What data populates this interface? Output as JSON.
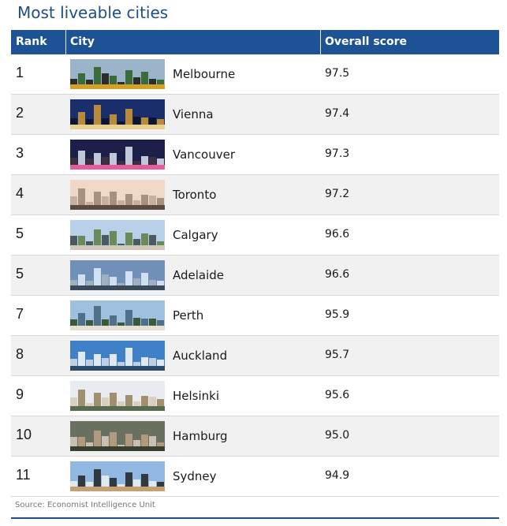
{
  "title": "Most liveable cities",
  "columns": {
    "rank": "Rank",
    "city": "City",
    "score": "Overall score"
  },
  "source": "Source: Economist Intelligence Unit",
  "chart_data": {
    "type": "table",
    "title": "Most liveable cities",
    "columns": [
      "Rank",
      "City",
      "Overall score"
    ],
    "rows": [
      {
        "rank": "1",
        "city": "Melbourne",
        "score": "97.5",
        "photo": "melbourne-tram-photo"
      },
      {
        "rank": "2",
        "city": "Vienna",
        "score": "97.4",
        "photo": "vienna-statue-photo"
      },
      {
        "rank": "3",
        "city": "Vancouver",
        "score": "97.3",
        "photo": "vancouver-night-skyline-photo"
      },
      {
        "rank": "4",
        "city": "Toronto",
        "score": "97.2",
        "photo": "toronto-skyline-photo"
      },
      {
        "rank": "5",
        "city": "Calgary",
        "score": "96.6",
        "photo": "calgary-skyline-photo"
      },
      {
        "rank": "5",
        "city": "Adelaide",
        "score": "96.6",
        "photo": "adelaide-fountain-photo"
      },
      {
        "rank": "7",
        "city": "Perth",
        "score": "95.9",
        "photo": "perth-skyline-photo"
      },
      {
        "rank": "8",
        "city": "Auckland",
        "score": "95.7",
        "photo": "auckland-skyline-photo"
      },
      {
        "rank": "9",
        "city": "Helsinki",
        "score": "95.6",
        "photo": "helsinki-cathedral-photo"
      },
      {
        "rank": "10",
        "city": "Hamburg",
        "score": "95.0",
        "photo": "hamburg-aerial-photo"
      },
      {
        "rank": "11",
        "city": "Sydney",
        "score": "94.9",
        "photo": "sydney-harbour-bridge-photo"
      }
    ]
  }
}
